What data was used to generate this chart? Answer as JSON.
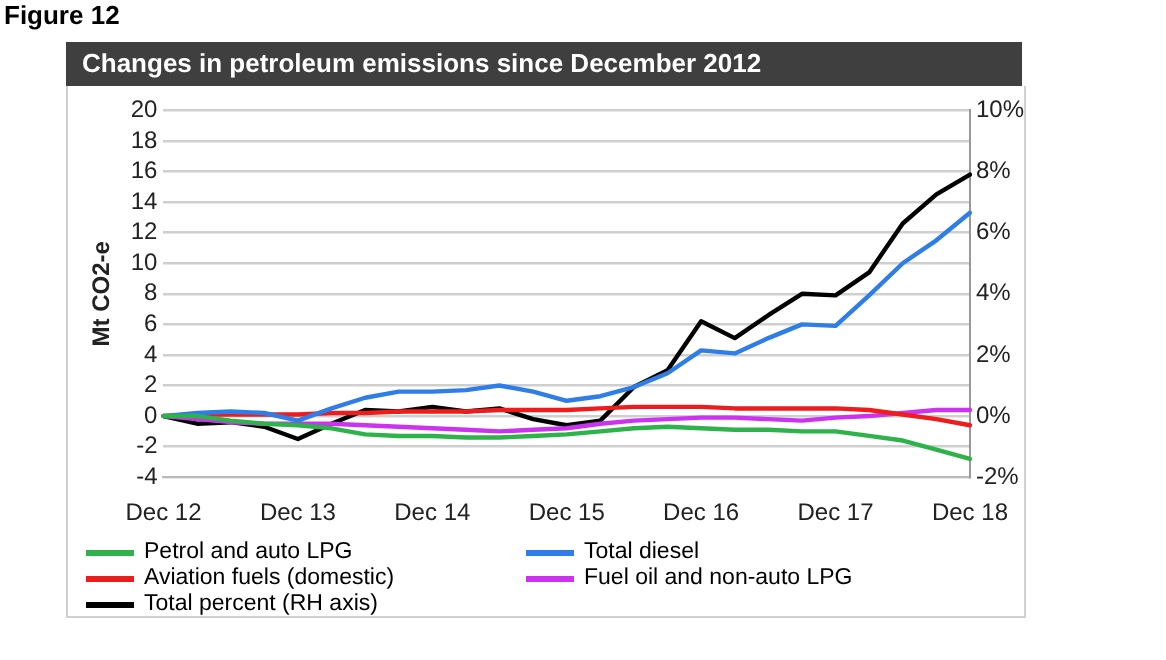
{
  "chart_data": {
    "type": "line",
    "title": "Changes in petroleum emissions since December 2012",
    "ylabel": "Mt CO2-e",
    "annotations": [
      "Figure 12"
    ],
    "categories": [
      "Dec 12",
      null,
      null,
      null,
      "Dec 13",
      null,
      null,
      null,
      "Dec 14",
      null,
      null,
      null,
      "Dec 15",
      null,
      null,
      null,
      "Dec 16",
      null,
      null,
      null,
      "Dec 17",
      null,
      null,
      null,
      "Dec 18"
    ],
    "series": [
      {
        "name": "Petrol and auto LPG",
        "color": "#2db34a",
        "values": [
          0,
          0,
          -0.3,
          -0.5,
          -0.6,
          -0.8,
          -1.2,
          -1.3,
          -1.3,
          -1.4,
          -1.4,
          -1.3,
          -1.2,
          -1.0,
          -0.8,
          -0.7,
          -0.8,
          -0.9,
          -0.9,
          -1.0,
          -1.0,
          -1.3,
          -1.6,
          -2.2,
          -2.8
        ]
      },
      {
        "name": "Total diesel",
        "color": "#2f7ee8",
        "values": [
          0,
          0.2,
          0.3,
          0.2,
          -0.3,
          0.5,
          1.2,
          1.6,
          1.6,
          1.7,
          2.0,
          1.6,
          1.0,
          1.3,
          1.9,
          2.8,
          4.3,
          4.1,
          5.1,
          6.0,
          5.9,
          7.9,
          10.0,
          11.5,
          13.3
        ]
      },
      {
        "name": "Aviation fuels (domestic)",
        "color": "#ee1c1c",
        "values": [
          0,
          0.1,
          0.1,
          0.1,
          0.1,
          0.2,
          0.2,
          0.3,
          0.3,
          0.3,
          0.4,
          0.4,
          0.4,
          0.5,
          0.6,
          0.6,
          0.6,
          0.5,
          0.5,
          0.5,
          0.5,
          0.4,
          0.1,
          -0.2,
          -0.6
        ]
      },
      {
        "name": "Fuel oil and non-auto LPG",
        "color": "#cc33ee",
        "values": [
          0,
          -0.2,
          -0.4,
          -0.5,
          -0.5,
          -0.5,
          -0.6,
          -0.7,
          -0.8,
          -0.9,
          -1.0,
          -0.9,
          -0.8,
          -0.5,
          -0.3,
          -0.2,
          -0.1,
          -0.1,
          -0.2,
          -0.3,
          -0.1,
          0,
          0.2,
          0.4,
          0.4
        ]
      },
      {
        "name": "Total percent (RH axis)",
        "color": "#000000",
        "axis": "y2",
        "values": [
          0,
          -0.25,
          -0.2,
          -0.35,
          -0.75,
          -0.25,
          0.2,
          0.15,
          0.3,
          0.15,
          0.25,
          -0.1,
          -0.3,
          -0.15,
          0.95,
          1.5,
          3.1,
          2.55,
          3.3,
          4.0,
          3.95,
          4.7,
          6.3,
          7.25,
          7.9
        ]
      }
    ],
    "ylim": [
      -4,
      20
    ],
    "yticks": [
      -4,
      -2,
      0,
      2,
      4,
      6,
      8,
      10,
      12,
      14,
      16,
      18,
      20
    ],
    "y2lim": [
      -2,
      10
    ],
    "y2ticks": [
      {
        "value": -2,
        "label": "-2%"
      },
      {
        "value": 0,
        "label": "0%"
      },
      {
        "value": 2,
        "label": "2%"
      },
      {
        "value": 4,
        "label": "4%"
      },
      {
        "value": 6,
        "label": "6%"
      },
      {
        "value": 8,
        "label": "8%"
      },
      {
        "value": 10,
        "label": "10%"
      }
    ],
    "grid": "y",
    "legend": "bottom",
    "marker": "none",
    "line_style": "solid"
  }
}
